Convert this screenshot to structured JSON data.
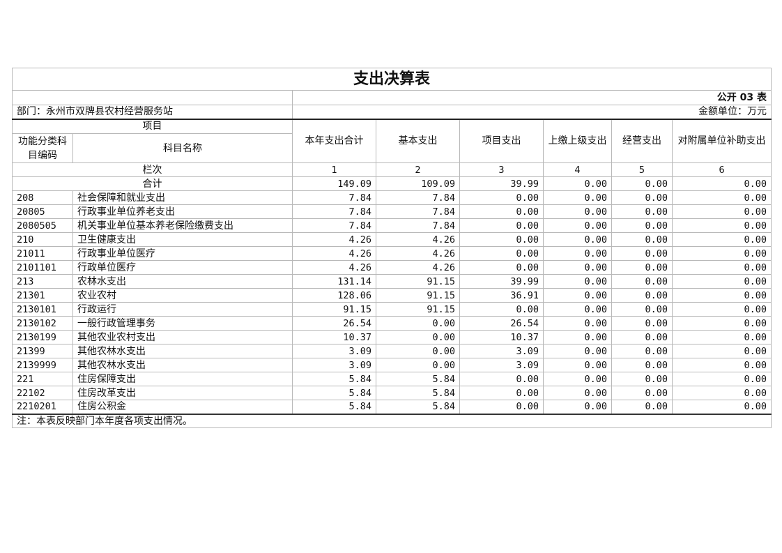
{
  "title": "支出决算表",
  "form_no": "公开 03 表",
  "department": "部门：永州市双牌县农村经营服务站",
  "unit": "金额单位：万元",
  "headers": {
    "item": "项目",
    "code": "功能分类科目编码",
    "name": "科目名称",
    "columns": [
      "本年支出合计",
      "基本支出",
      "项目支出",
      "上缴上级支出",
      "经营支出",
      "对附属单位补助支出"
    ],
    "row_index_label": "栏次",
    "row_index": [
      "1",
      "2",
      "3",
      "4",
      "5",
      "6"
    ]
  },
  "total": {
    "label": "合计",
    "values": [
      "149.09",
      "109.09",
      "39.99",
      "0.00",
      "0.00",
      "0.00"
    ]
  },
  "rows": [
    {
      "code": "208",
      "name": "社会保障和就业支出",
      "values": [
        "7.84",
        "7.84",
        "0.00",
        "0.00",
        "0.00",
        "0.00"
      ]
    },
    {
      "code": "20805",
      "name": "行政事业单位养老支出",
      "values": [
        "7.84",
        "7.84",
        "0.00",
        "0.00",
        "0.00",
        "0.00"
      ]
    },
    {
      "code": "2080505",
      "name": "机关事业单位基本养老保险缴费支出",
      "values": [
        "7.84",
        "7.84",
        "0.00",
        "0.00",
        "0.00",
        "0.00"
      ]
    },
    {
      "code": "210",
      "name": "卫生健康支出",
      "values": [
        "4.26",
        "4.26",
        "0.00",
        "0.00",
        "0.00",
        "0.00"
      ]
    },
    {
      "code": "21011",
      "name": "行政事业单位医疗",
      "values": [
        "4.26",
        "4.26",
        "0.00",
        "0.00",
        "0.00",
        "0.00"
      ]
    },
    {
      "code": "2101101",
      "name": "行政单位医疗",
      "values": [
        "4.26",
        "4.26",
        "0.00",
        "0.00",
        "0.00",
        "0.00"
      ]
    },
    {
      "code": "213",
      "name": "农林水支出",
      "values": [
        "131.14",
        "91.15",
        "39.99",
        "0.00",
        "0.00",
        "0.00"
      ]
    },
    {
      "code": "21301",
      "name": "农业农村",
      "values": [
        "128.06",
        "91.15",
        "36.91",
        "0.00",
        "0.00",
        "0.00"
      ]
    },
    {
      "code": "2130101",
      "name": "行政运行",
      "values": [
        "91.15",
        "91.15",
        "0.00",
        "0.00",
        "0.00",
        "0.00"
      ]
    },
    {
      "code": "2130102",
      "name": "一般行政管理事务",
      "values": [
        "26.54",
        "0.00",
        "26.54",
        "0.00",
        "0.00",
        "0.00"
      ]
    },
    {
      "code": "2130199",
      "name": "其他农业农村支出",
      "values": [
        "10.37",
        "0.00",
        "10.37",
        "0.00",
        "0.00",
        "0.00"
      ]
    },
    {
      "code": "21399",
      "name": "其他农林水支出",
      "values": [
        "3.09",
        "0.00",
        "3.09",
        "0.00",
        "0.00",
        "0.00"
      ]
    },
    {
      "code": "2139999",
      "name": "其他农林水支出",
      "values": [
        "3.09",
        "0.00",
        "3.09",
        "0.00",
        "0.00",
        "0.00"
      ]
    },
    {
      "code": "221",
      "name": "住房保障支出",
      "values": [
        "5.84",
        "5.84",
        "0.00",
        "0.00",
        "0.00",
        "0.00"
      ]
    },
    {
      "code": "22102",
      "name": "住房改革支出",
      "values": [
        "5.84",
        "5.84",
        "0.00",
        "0.00",
        "0.00",
        "0.00"
      ]
    },
    {
      "code": "2210201",
      "name": "住房公积金",
      "values": [
        "5.84",
        "5.84",
        "0.00",
        "0.00",
        "0.00",
        "0.00"
      ]
    }
  ],
  "note": "注：本表反映部门本年度各项支出情况。"
}
